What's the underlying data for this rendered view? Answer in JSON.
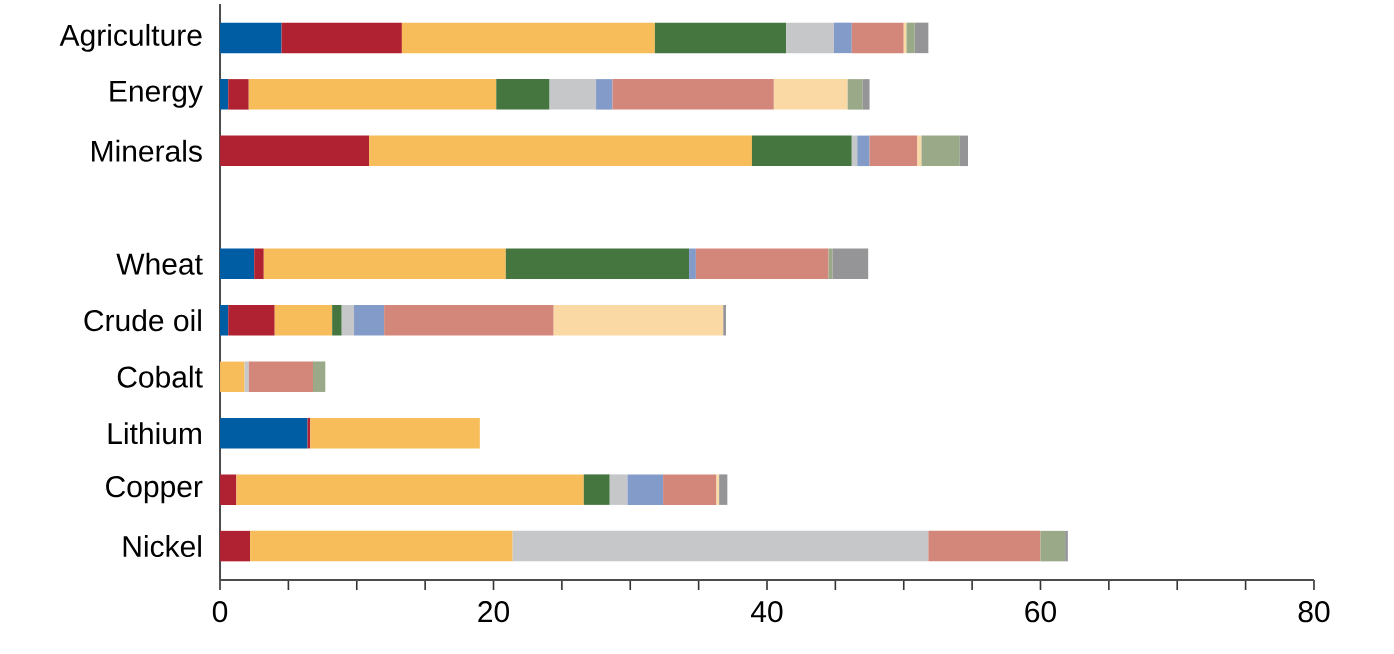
{
  "chart_data": {
    "type": "bar",
    "orientation": "horizontal",
    "stacked": true,
    "categories": [
      "Agriculture",
      "Energy",
      "Minerals",
      null,
      "Wheat",
      "Crude oil",
      "Cobalt",
      "Lithium",
      "Copper",
      "Nickel"
    ],
    "series": [
      {
        "color": "#005da3",
        "values": [
          4.5,
          0.6,
          null,
          null,
          2.5,
          0.6,
          null,
          6.4,
          null,
          null
        ]
      },
      {
        "color": "#b02232",
        "values": [
          8.8,
          1.5,
          10.9,
          null,
          0.7,
          3.4,
          null,
          0.2,
          1.2,
          2.2
        ]
      },
      {
        "color": "#f7bd5a",
        "values": [
          18.5,
          18.1,
          28.0,
          null,
          17.7,
          4.2,
          1.8,
          12.4,
          25.4,
          19.2
        ]
      },
      {
        "color": "#467640",
        "values": [
          9.6,
          3.9,
          7.3,
          null,
          13.4,
          0.7,
          null,
          null,
          1.9,
          null
        ]
      },
      {
        "color": "#c6c7c9",
        "values": [
          3.5,
          3.4,
          0.4,
          null,
          null,
          0.9,
          0.3,
          null,
          1.3,
          30.4
        ]
      },
      {
        "color": "#839bc9",
        "values": [
          1.3,
          1.2,
          0.9,
          null,
          0.5,
          2.2,
          null,
          null,
          2.6,
          null
        ]
      },
      {
        "color": "#d3877b",
        "values": [
          3.8,
          11.8,
          3.5,
          null,
          9.7,
          12.4,
          4.7,
          null,
          3.9,
          8.2
        ]
      },
      {
        "color": "#fbd9a4",
        "values": [
          0.2,
          5.4,
          0.3,
          null,
          null,
          12.4,
          null,
          null,
          0.2,
          null
        ]
      },
      {
        "color": "#9aa988",
        "values": [
          0.6,
          1.1,
          2.8,
          null,
          0.3,
          null,
          0.9,
          null,
          null,
          1.8
        ]
      },
      {
        "color": "#959597",
        "values": [
          1.0,
          0.5,
          0.6,
          null,
          2.6,
          0.2,
          null,
          null,
          0.6,
          0.2
        ]
      }
    ],
    "xlim": [
      0,
      80
    ],
    "xticks": [
      0,
      {
        "value": 5,
        "label": null
      },
      {
        "value": 10,
        "label": null
      },
      {
        "value": 15,
        "label": null
      },
      20,
      {
        "value": 25,
        "label": null
      },
      {
        "value": 30,
        "label": null
      },
      {
        "value": 35,
        "label": null
      },
      40,
      {
        "value": 45,
        "label": null
      },
      {
        "value": 50,
        "label": null
      },
      {
        "value": 55,
        "label": null
      },
      60,
      {
        "value": 65,
        "label": null
      },
      {
        "value": 70,
        "label": null
      },
      {
        "value": 75,
        "label": null
      },
      80
    ],
    "grid": false
  }
}
